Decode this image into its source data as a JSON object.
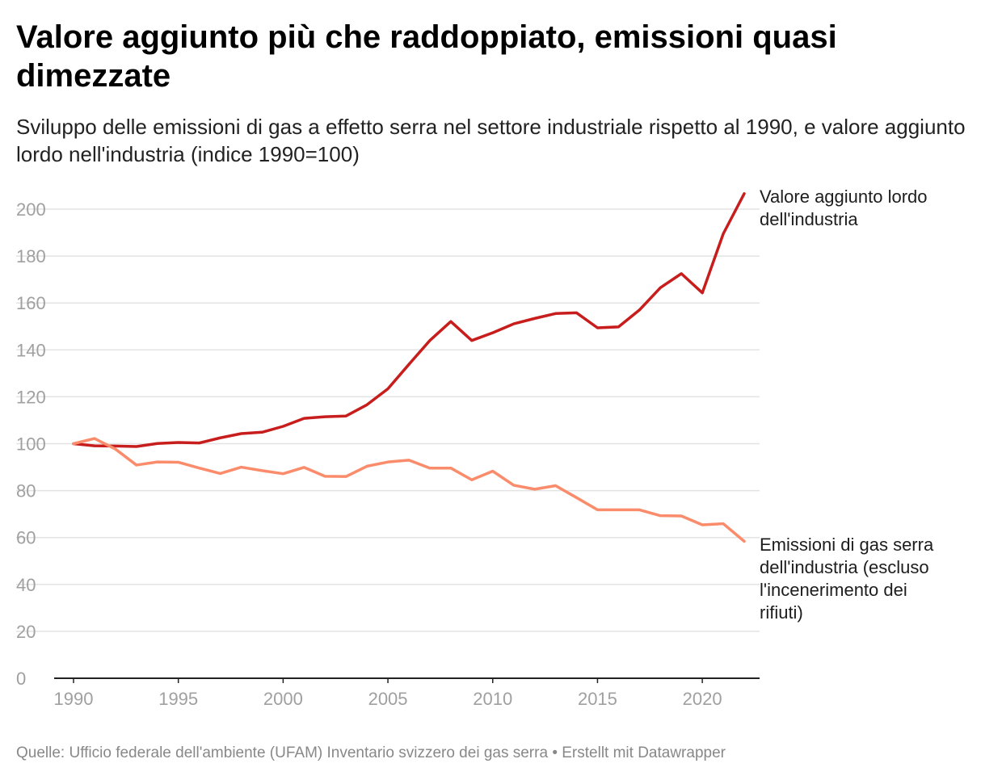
{
  "header": {
    "title": "Valore aggiunto più che raddoppiato, emissioni quasi dimezzate",
    "subtitle": "Sviluppo delle emissioni di gas a effetto serra nel settore industriale rispetto al 1990, e valore aggiunto lordo nell'industria (indice 1990=100)"
  },
  "footer": {
    "source_label": "Quelle:",
    "source_text": "Ufficio federale dell'ambiente (UFAM) Inventario svizzero dei gas serra",
    "separator": "•",
    "credit": "Erstellt mit Datawrapper"
  },
  "chart_data": {
    "type": "line",
    "title": "Valore aggiunto più che raddoppiato, emissioni quasi dimezzate",
    "subtitle": "Sviluppo delle emissioni di gas a effetto serra nel settore industriale rispetto al 1990, e valore aggiunto lordo nell'industria (indice 1990=100)",
    "xlabel": "",
    "ylabel": "",
    "xlim": [
      1990,
      2022
    ],
    "ylim": [
      0,
      200
    ],
    "x_ticks": [
      1990,
      1995,
      2000,
      2005,
      2010,
      2015,
      2020
    ],
    "y_ticks": [
      0,
      20,
      40,
      60,
      80,
      100,
      120,
      140,
      160,
      180,
      200
    ],
    "grid": true,
    "legend": "direct labels at line ends",
    "x": [
      1990,
      1991,
      1992,
      1993,
      1994,
      1995,
      1996,
      1997,
      1998,
      1999,
      2000,
      2001,
      2002,
      2003,
      2004,
      2005,
      2006,
      2007,
      2008,
      2009,
      2010,
      2011,
      2012,
      2013,
      2014,
      2015,
      2016,
      2017,
      2018,
      2019,
      2020,
      2021,
      2022
    ],
    "series": [
      {
        "name": "Valore aggiunto lordo dell'industria",
        "label_lines": [
          "Valore aggiunto lordo",
          "dell'industria"
        ],
        "color": "#c71e1d",
        "values": [
          100,
          99.1,
          99.0,
          98.8,
          100.1,
          100.5,
          100.3,
          102.5,
          104.3,
          104.9,
          107.4,
          110.8,
          111.5,
          111.8,
          116.6,
          123.4,
          133.8,
          144.0,
          152.1,
          144.0,
          147.3,
          151.1,
          153.4,
          155.5,
          155.8,
          149.4,
          149.8,
          157.0,
          166.5,
          172.5,
          164.3,
          189.5,
          206.6
        ]
      },
      {
        "name": "Emissioni di gas serra dell'industria (escluso l'incenerimento dei rifiuti)",
        "label_lines": [
          "Emissioni di gas serra",
          "dell'industria (escluso",
          "l'incenerimento dei",
          "rifiuti)"
        ],
        "color": "#fa8c6b",
        "values": [
          100,
          102.2,
          97.7,
          90.9,
          92.2,
          92.1,
          89.6,
          87.3,
          90.0,
          88.5,
          87.2,
          89.9,
          86.1,
          86.0,
          90.4,
          92.2,
          93.0,
          89.6,
          89.6,
          84.6,
          88.3,
          82.3,
          80.6,
          82.1,
          77.0,
          71.8,
          71.8,
          71.8,
          69.3,
          69.2,
          65.4,
          65.9,
          58.4
        ]
      }
    ]
  }
}
